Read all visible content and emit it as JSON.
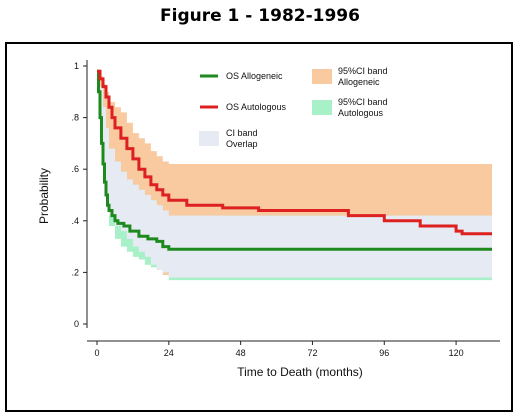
{
  "figure_title": "Figure 1 - 1982-1996",
  "chart_data": {
    "type": "line",
    "title": "Figure 1 - 1982-1996",
    "xlabel": "Time to Death (months)",
    "ylabel": "Probability",
    "xlim": [
      0,
      132
    ],
    "ylim": [
      0,
      1
    ],
    "x_ticks": [
      0,
      24,
      48,
      72,
      96,
      120
    ],
    "y_ticks": [
      0,
      0.2,
      0.4,
      0.6,
      0.8,
      1
    ],
    "y_tick_labels": [
      "0",
      ".2",
      ".4",
      ".6",
      ".8",
      "1"
    ],
    "grid": false,
    "legend_position": "top",
    "series": [
      {
        "name": "OS Allogeneic",
        "color": "#1e8a1e",
        "kind": "step",
        "x": [
          0,
          0.5,
          1,
          1.5,
          2,
          2.5,
          3,
          3.5,
          4,
          5,
          6,
          7,
          9,
          11,
          14,
          17,
          20,
          22,
          24,
          132
        ],
        "y": [
          0.98,
          0.9,
          0.8,
          0.7,
          0.62,
          0.55,
          0.5,
          0.46,
          0.44,
          0.42,
          0.4,
          0.39,
          0.38,
          0.36,
          0.34,
          0.33,
          0.32,
          0.3,
          0.29,
          0.29
        ]
      },
      {
        "name": "OS Autologous",
        "color": "#dd2020",
        "kind": "step",
        "x": [
          0,
          1,
          2,
          3,
          4,
          5,
          6,
          8,
          10,
          12,
          14,
          16,
          18,
          20,
          22,
          24,
          30,
          42,
          54,
          84,
          96,
          108,
          120,
          122,
          132
        ],
        "y": [
          0.98,
          0.95,
          0.92,
          0.88,
          0.84,
          0.8,
          0.76,
          0.72,
          0.68,
          0.64,
          0.6,
          0.57,
          0.54,
          0.52,
          0.5,
          0.48,
          0.46,
          0.45,
          0.44,
          0.42,
          0.4,
          0.38,
          0.36,
          0.35,
          0.35
        ]
      },
      {
        "name": "95%CI band Allogeneic",
        "color": "#f9c9a0",
        "kind": "band",
        "x": [
          0,
          1,
          2,
          3,
          4,
          6,
          8,
          10,
          12,
          14,
          16,
          18,
          20,
          22,
          24,
          132
        ],
        "lower": [
          0.95,
          0.74,
          0.6,
          0.5,
          0.42,
          0.38,
          0.36,
          0.33,
          0.3,
          0.28,
          0.26,
          0.23,
          0.21,
          0.19,
          0.18,
          0.18
        ],
        "upper": [
          0.98,
          0.96,
          0.93,
          0.9,
          0.86,
          0.84,
          0.82,
          0.78,
          0.74,
          0.72,
          0.7,
          0.67,
          0.65,
          0.63,
          0.62,
          0.48
        ]
      },
      {
        "name": "95%CI band Autologous",
        "color": "#a8f0c8",
        "kind": "band",
        "x": [
          0,
          1,
          2,
          3,
          4,
          6,
          8,
          10,
          12,
          14,
          16,
          18,
          20,
          22,
          24,
          132
        ],
        "lower": [
          0.92,
          0.7,
          0.56,
          0.46,
          0.38,
          0.33,
          0.3,
          0.28,
          0.26,
          0.25,
          0.23,
          0.22,
          0.21,
          0.2,
          0.17,
          0.17
        ],
        "upper": [
          0.98,
          0.92,
          0.84,
          0.76,
          0.68,
          0.63,
          0.59,
          0.56,
          0.54,
          0.52,
          0.5,
          0.48,
          0.46,
          0.44,
          0.42,
          0.4
        ]
      }
    ],
    "legend": [
      {
        "label": "OS Allogeneic",
        "type": "line",
        "color": "#1e8a1e"
      },
      {
        "label": "95%CI band\nAllogeneic",
        "type": "patch",
        "color": "#f9c9a0"
      },
      {
        "label": "OS Autologous",
        "type": "line",
        "color": "#dd2020"
      },
      {
        "label": "95%CI band\nAutologous",
        "type": "patch",
        "color": "#a8f0c8"
      },
      {
        "label": "CI band\nOverlap",
        "type": "patch",
        "color": "#e6eaf2"
      }
    ],
    "overlap_color": "#e6eaf2"
  }
}
